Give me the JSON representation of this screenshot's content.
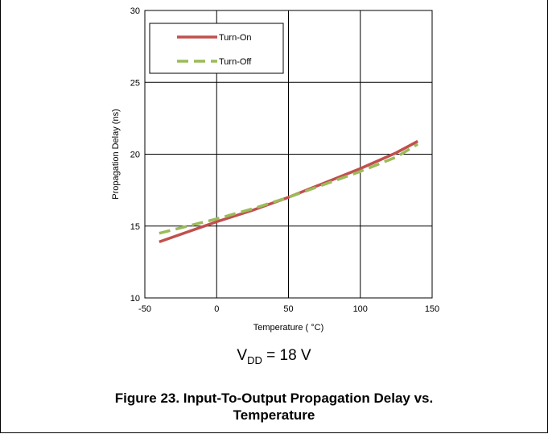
{
  "chart_data": {
    "type": "line",
    "xlabel": "Temperature ( °C)",
    "ylabel": "Propagation Delay (ns)",
    "xlim": [
      -50,
      150
    ],
    "ylim": [
      10,
      30
    ],
    "x_ticks": [
      "-50",
      "0",
      "50",
      "100",
      "150"
    ],
    "y_ticks": [
      "10",
      "15",
      "20",
      "25",
      "30"
    ],
    "grid": true,
    "legend_position": "top-left",
    "series": [
      {
        "name": "Turn-On",
        "color": "#c0504d",
        "style": "solid",
        "x": [
          -40,
          -20,
          0,
          25,
          50,
          75,
          100,
          125,
          140
        ],
        "y": [
          13.9,
          14.6,
          15.3,
          16.1,
          17.0,
          18.0,
          19.0,
          20.1,
          20.9
        ]
      },
      {
        "name": "Turn-Off",
        "color": "#9bbb59",
        "style": "dashed",
        "x": [
          -40,
          -20,
          0,
          25,
          50,
          75,
          100,
          125,
          140
        ],
        "y": [
          14.5,
          15.0,
          15.5,
          16.2,
          17.0,
          17.9,
          18.8,
          19.8,
          20.7
        ]
      }
    ]
  },
  "condition": {
    "prefix": "V",
    "subscript": "DD",
    "suffix": " = 18 V"
  },
  "caption": {
    "line1": "Figure 23. Input-To-Output Propagation Delay vs.",
    "line2": "Temperature"
  }
}
